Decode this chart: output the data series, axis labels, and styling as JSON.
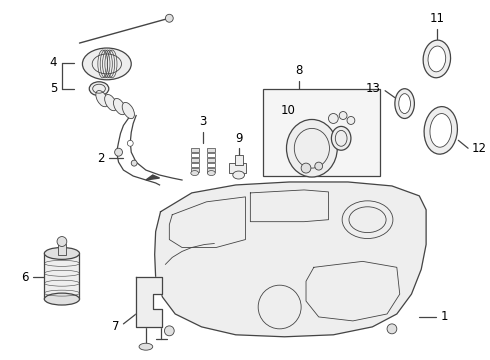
{
  "bg_color": "#ffffff",
  "line_color": "#444444",
  "label_color": "#000000",
  "figsize": [
    4.9,
    3.6
  ],
  "dpi": 100,
  "label_font_size": 8.5
}
